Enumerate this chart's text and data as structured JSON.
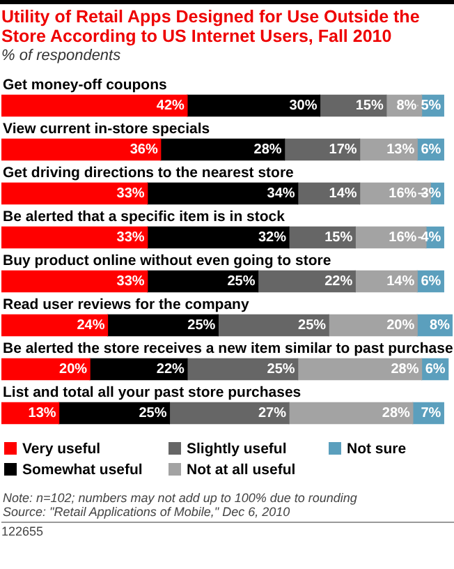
{
  "chart_data": {
    "type": "bar",
    "orientation": "horizontal",
    "stacked": true,
    "legend": "bottom",
    "title": "Utility of Retail Apps Designed for Use Outside the Store According to US Internet Users, Fall 2010",
    "subtitle": "% of respondents",
    "categories": [
      "Get money-off coupons",
      "View current in-store specials",
      "Get driving directions to the nearest store",
      "Be alerted that a specific item is in stock",
      "Buy product online without even going to store",
      "Read user reviews for the company",
      "Be alerted the store receives a new item similar to past purchase",
      "List and total all your past store purchases"
    ],
    "series": [
      {
        "name": "Very useful",
        "color": "#ff0000",
        "values": [
          42,
          36,
          33,
          33,
          33,
          24,
          20,
          13
        ],
        "value_labels": [
          "42%",
          "36%",
          "33%",
          "33%",
          "33%",
          "24%",
          "20%",
          "13%"
        ]
      },
      {
        "name": "Somewhat useful",
        "color": "#000000",
        "values": [
          30,
          28,
          34,
          32,
          25,
          25,
          22,
          25
        ],
        "value_labels": [
          "30%",
          "28%",
          "34%",
          "32%",
          "25%",
          "25%",
          "22%",
          "25%"
        ]
      },
      {
        "name": "Slightly useful",
        "color": "#666666",
        "values": [
          15,
          17,
          14,
          15,
          22,
          25,
          25,
          27
        ],
        "value_labels": [
          "15%",
          "17%",
          "14%",
          "15%",
          "22%",
          "25%",
          "25%",
          "27%"
        ]
      },
      {
        "name": "Not at all useful",
        "color": "#a3a3a3",
        "values": [
          8,
          13,
          16,
          16,
          14,
          20,
          28,
          28
        ],
        "value_labels": [
          "8%",
          "13%",
          "16%",
          "16%",
          "14%",
          "20%",
          "28%",
          "28%"
        ]
      },
      {
        "name": "Not sure",
        "color": "#5b9fbd",
        "values": [
          5,
          6,
          3,
          4,
          6,
          8,
          6,
          7
        ],
        "value_labels": [
          "5%",
          "6%",
          "3%",
          "4%",
          "6%",
          "8%",
          "6%",
          "7%"
        ]
      }
    ],
    "annotations": [
      "Note: n=102; numbers may not add up to 100% due to rounding",
      "Source: \"Retail Applications of Mobile,\" Dec 6, 2010",
      "122655"
    ]
  }
}
